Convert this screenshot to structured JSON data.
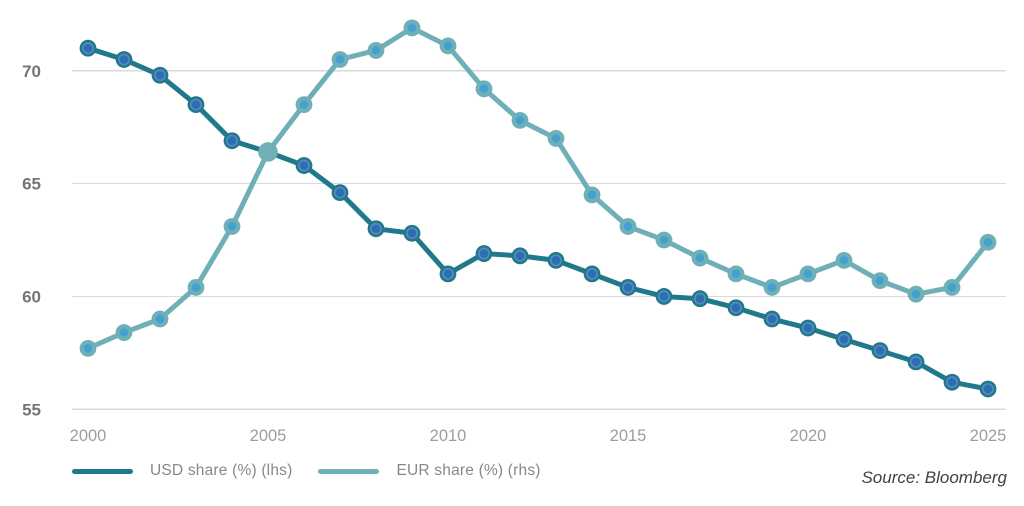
{
  "source": "Source: Bloomberg",
  "chart_data": {
    "type": "line",
    "title": "",
    "xlabel": "",
    "ylabel": "",
    "x": [
      2000,
      2001,
      2002,
      2003,
      2004,
      2005,
      2006,
      2007,
      2008,
      2009,
      2010,
      2011,
      2012,
      2013,
      2014,
      2015,
      2016,
      2017,
      2018,
      2019,
      2020,
      2021,
      2022,
      2023,
      2024,
      2025
    ],
    "series": [
      {
        "key": "usd",
        "name": "USD share (%) (lhs)",
        "color": "#20798A",
        "marker": {
          "outer": "#20798A",
          "mid": "#5E87C4",
          "inner": "#2A6FB0"
        },
        "values": [
          71.0,
          70.5,
          69.8,
          68.5,
          66.9,
          66.4,
          65.8,
          64.6,
          63.0,
          62.8,
          61.0,
          61.9,
          61.8,
          61.6,
          61.0,
          60.4,
          60.0,
          59.9,
          59.5,
          59.0,
          58.6,
          58.1,
          57.6,
          57.1,
          56.2,
          55.9
        ]
      },
      {
        "key": "eur",
        "name": "EUR share (%) (rhs)",
        "color": "#6FAFB7",
        "marker": {
          "outer": "#6FAFB7",
          "inner": "#45A0D2"
        },
        "solid_marker_x": [
          2005
        ],
        "values": [
          57.7,
          58.4,
          59.0,
          60.4,
          63.1,
          66.4,
          68.5,
          70.5,
          70.9,
          71.9,
          71.1,
          69.2,
          67.8,
          67.0,
          64.5,
          63.1,
          62.5,
          61.7,
          61.0,
          60.4,
          61.0,
          61.6,
          60.7,
          60.1,
          60.4,
          62.4
        ]
      }
    ],
    "yticks": [
      55,
      60,
      65,
      70
    ],
    "xticks": [
      2000,
      2005,
      2010,
      2015,
      2020,
      2025
    ],
    "ylim": [
      54.2,
      72.6
    ],
    "grid": "horizontal-only",
    "legend_position": "bottom-left",
    "colors": {
      "background": "#FFFFFF",
      "gridline": "#D9D9D9",
      "ytick_text": "#737678",
      "xtick_text": "#9B9EA0",
      "legend_text": "#85888B",
      "source_text": "#3E4347"
    }
  }
}
